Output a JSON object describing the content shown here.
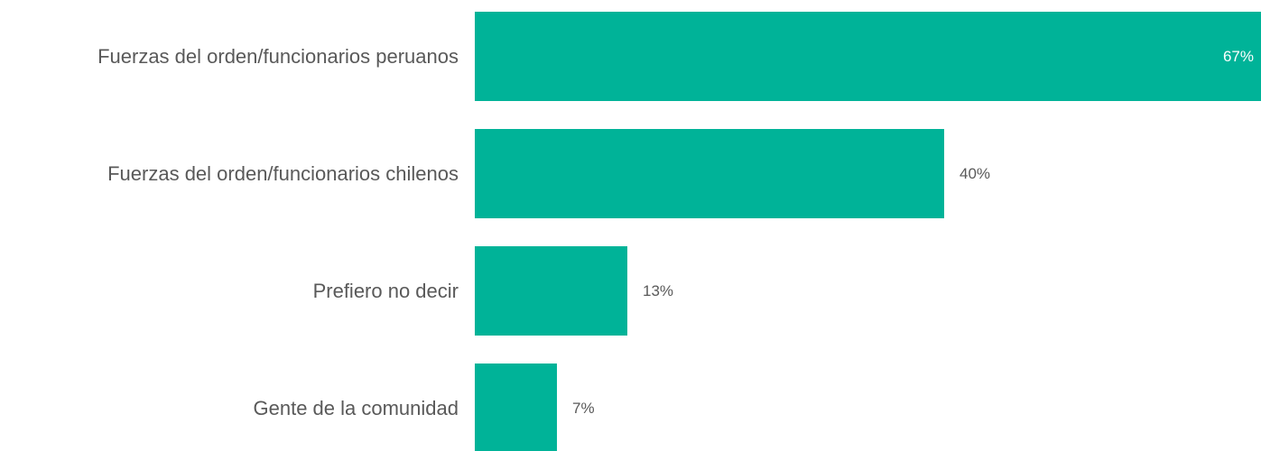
{
  "chart_data": {
    "type": "bar",
    "orientation": "horizontal",
    "categories": [
      "Fuerzas del orden/funcionarios peruanos",
      "Fuerzas del orden/funcionarios chilenos",
      "Prefiero no decir",
      "Gente de la comunidad"
    ],
    "values": [
      67,
      40,
      13,
      7
    ],
    "value_labels": [
      "67%",
      "40%",
      "13%",
      "7%"
    ],
    "title": "",
    "xlabel": "",
    "ylabel": "",
    "xlim": [
      0,
      67
    ],
    "grid": false,
    "legend": "none",
    "bar_color": "#00B398",
    "text_color": "#595959",
    "inside_label_color": "#ffffff"
  }
}
